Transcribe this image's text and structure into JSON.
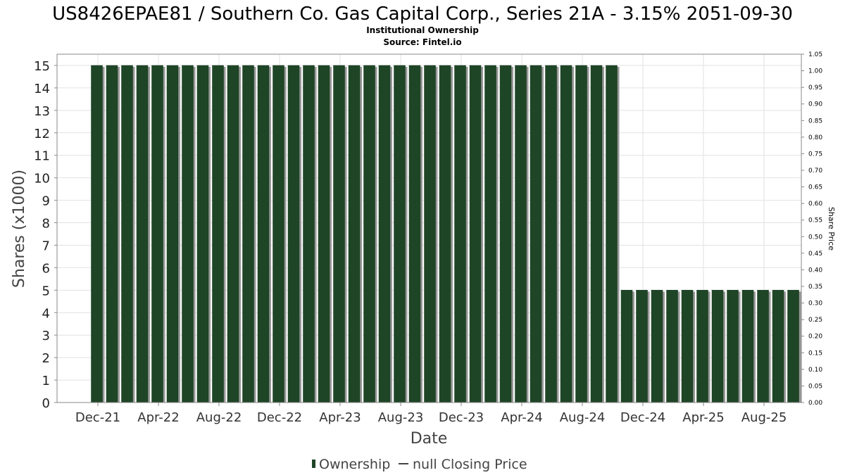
{
  "chart_data": {
    "type": "bar",
    "title": "US8426EPAE81 / Southern Co. Gas Capital Corp., Series 21A - 3.15% 2051-09-30",
    "subtitle": "Institutional Ownership",
    "source": "Source: Fintel.io",
    "xlabel": "Date",
    "ylabel": "Shares (x1000)",
    "y2label": "Share Price",
    "ylim": [
      0,
      15.5
    ],
    "y2lim": [
      0,
      1.05
    ],
    "y_ticks": [
      "0",
      "1",
      "2",
      "3",
      "4",
      "5",
      "6",
      "7",
      "8",
      "9",
      "10",
      "11",
      "12",
      "13",
      "14",
      "15"
    ],
    "y2_ticks": [
      "0.00",
      "0.05",
      "0.10",
      "0.15",
      "0.20",
      "0.25",
      "0.30",
      "0.35",
      "0.40",
      "0.45",
      "0.50",
      "0.55",
      "0.60",
      "0.65",
      "0.70",
      "0.75",
      "0.80",
      "0.85",
      "0.90",
      "0.95",
      "1.00",
      "1.05"
    ],
    "x_tick_labels": [
      "Dec-21",
      "Apr-22",
      "Aug-22",
      "Dec-22",
      "Apr-23",
      "Aug-23",
      "Dec-23",
      "Apr-24",
      "Aug-24",
      "Dec-24",
      "Apr-25",
      "Aug-25"
    ],
    "grid": true,
    "legend_position": "bottom-center",
    "series": [
      {
        "name": "Ownership",
        "color": "#1f4527",
        "values": [
          15,
          15,
          15,
          15,
          15,
          15,
          15,
          15,
          15,
          15,
          15,
          15,
          15,
          15,
          15,
          15,
          15,
          15,
          15,
          15,
          15,
          15,
          15,
          15,
          15,
          15,
          15,
          15,
          15,
          15,
          15,
          15,
          15,
          15,
          15,
          5,
          5,
          5,
          5,
          5,
          5,
          5,
          5,
          5,
          5,
          5,
          5
        ]
      }
    ],
    "legend": {
      "ownership_label": "Ownership",
      "price_label": "null Closing Price"
    }
  }
}
